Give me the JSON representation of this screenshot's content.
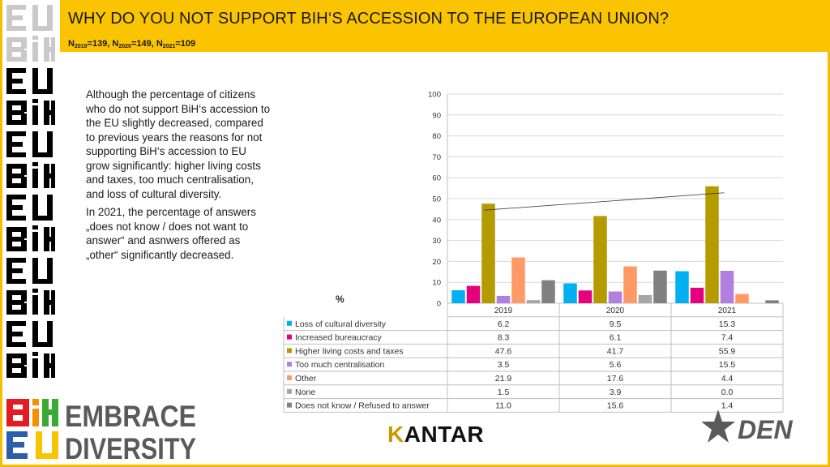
{
  "header": {
    "title": "WHY DO YOU NOT SUPPORT BIH‘S ACCESSION TO THE EUROPEAN UNION?",
    "n_label": "N",
    "n2019_year": "2019",
    "n2019_value": "=139, ",
    "n2020_year": "2020",
    "n2020_value": "=149, ",
    "n2021_year": "2021",
    "n2021_value": "=109"
  },
  "text": {
    "paragraph1": "Although the percentage of citizens who do not support BiH‘s accession to the EU slightly decreased, compared to previous years the reasons for not supporting BiH‘s accession to EU grow significantly: higher living costs and taxes, too much centralisation, and loss of cultural diversity.",
    "paragraph2": "In 2021, the percentage of answers „does not know / does not want to answer“ and asnwers offered  as „other“ significantly decreased."
  },
  "branding": {
    "left_logo": "BiH EU",
    "embrace": "EMBRACE",
    "diversity": "DIVERSITY",
    "kantar_k": "K",
    "kantar_rest": "ANTAR",
    "den": "DEN"
  },
  "chart_data": {
    "type": "bar",
    "unit_label": "%",
    "ylim": [
      0,
      100
    ],
    "y_ticks": [
      0,
      10,
      20,
      30,
      40,
      50,
      60,
      70,
      80,
      90,
      100
    ],
    "grid": true,
    "legend": "table-below",
    "categories": [
      "2019",
      "2020",
      "2021"
    ],
    "series": [
      {
        "name": "Loss of cultural diversity",
        "color": "#00b0f0",
        "values": [
          6.2,
          9.5,
          15.3
        ]
      },
      {
        "name": "Increased bureaucracy",
        "color": "#e6007e",
        "values": [
          8.3,
          6.1,
          7.4
        ]
      },
      {
        "name": "Higher living costs and taxes",
        "color": "#b49b00",
        "values": [
          47.6,
          41.7,
          55.9
        ]
      },
      {
        "name": "Too much centralisation",
        "color": "#b07fe0",
        "values": [
          3.5,
          5.6,
          15.5
        ]
      },
      {
        "name": "Other",
        "color": "#ff9966",
        "values": [
          21.9,
          17.6,
          4.4
        ]
      },
      {
        "name": "None",
        "color": "#a6a6a6",
        "values": [
          1.5,
          3.9,
          0.0
        ]
      },
      {
        "name": "Does not know / Refused to answer",
        "color": "#808080",
        "values": [
          11.0,
          15.6,
          1.4
        ]
      }
    ],
    "trendline": {
      "series": "Higher living costs and taxes",
      "from": 44.5,
      "to": 52.8
    }
  }
}
